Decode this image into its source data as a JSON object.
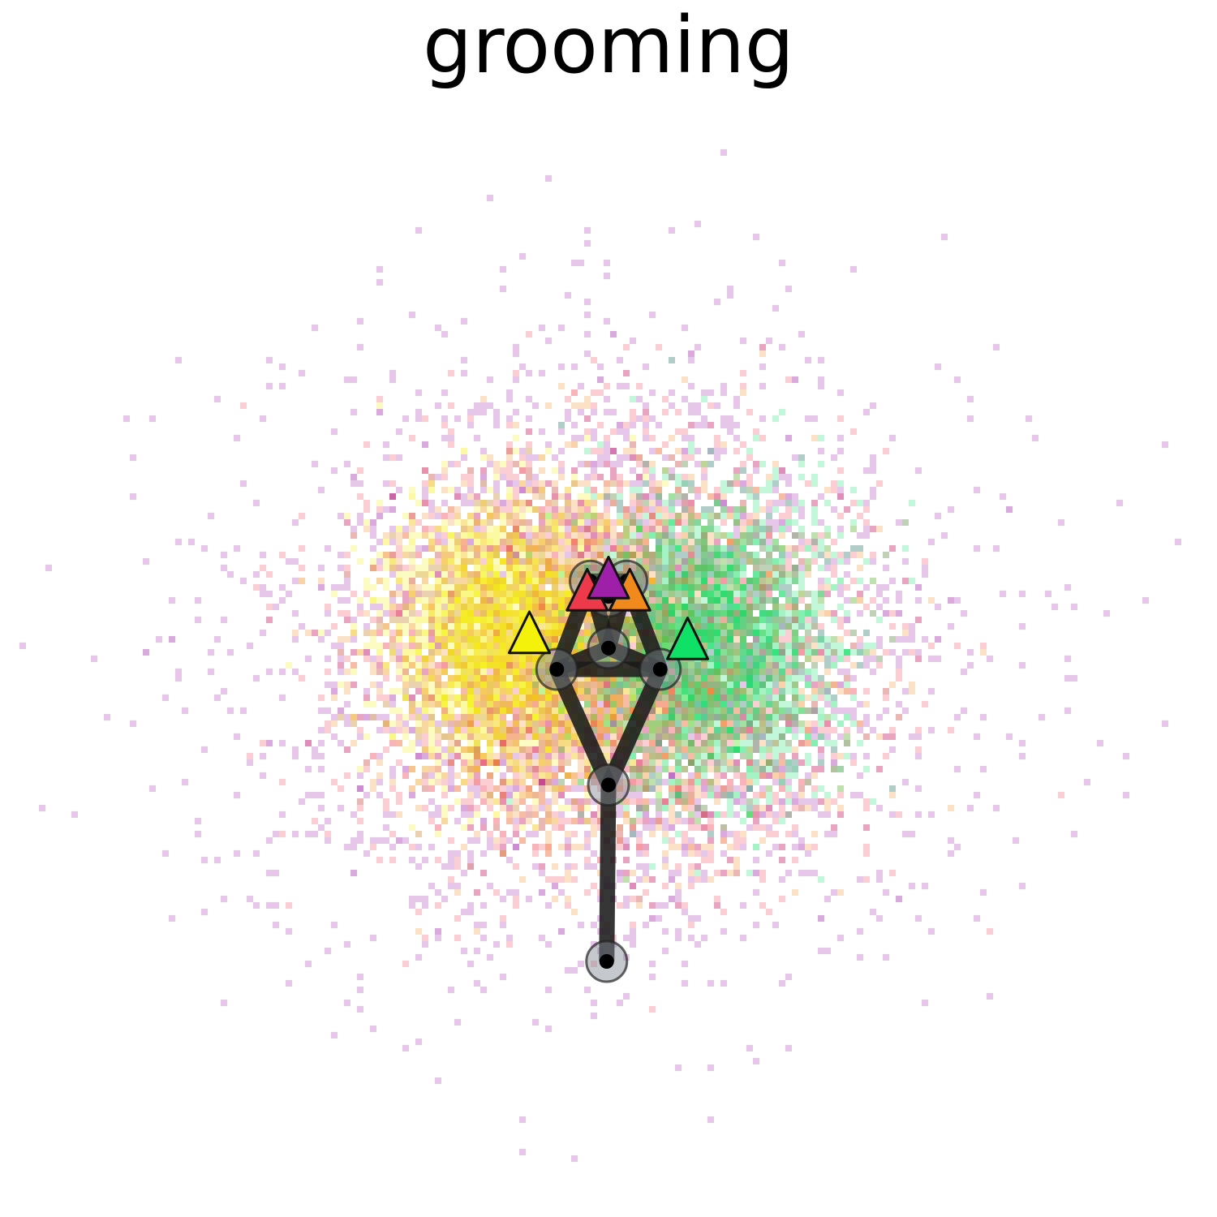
{
  "chart_data": {
    "type": "scatter",
    "title": "grooming",
    "xlabel": "",
    "ylabel": "",
    "axes_visible": false,
    "grid": false,
    "legend": "none",
    "xlim": [
      -1.0,
      1.0
    ],
    "ylim": [
      -1.0,
      1.0
    ],
    "density_clouds": [
      {
        "color": "#9e1fa8",
        "cx": 0.0,
        "cy": -0.08,
        "sx": 0.29,
        "sy": 0.25
      },
      {
        "color": "#ec3a4a",
        "cx": 0.0,
        "cy": -0.08,
        "sx": 0.2,
        "sy": 0.17
      },
      {
        "color": "#f08a1c",
        "cx": 0.0,
        "cy": -0.08,
        "sx": 0.17,
        "sy": 0.14
      },
      {
        "color": "#f4f20a",
        "cx": -0.17,
        "cy": -0.05,
        "sx": 0.1,
        "sy": 0.11
      },
      {
        "color": "#0fe066",
        "cx": 0.17,
        "cy": -0.06,
        "sx": 0.1,
        "sy": 0.12
      }
    ],
    "skeleton": {
      "joints": [
        {
          "name": "head_front_left",
          "x": -0.03,
          "y": 0.045
        },
        {
          "name": "head_front_right",
          "x": 0.03,
          "y": 0.045
        },
        {
          "name": "head_center",
          "x": 0.0,
          "y": 0.02
        },
        {
          "name": "neck",
          "x": 0.0,
          "y": -0.065
        },
        {
          "name": "shoulder_left",
          "x": -0.085,
          "y": -0.1
        },
        {
          "name": "shoulder_right",
          "x": 0.085,
          "y": -0.1
        },
        {
          "name": "hip",
          "x": 0.0,
          "y": -0.29
        },
        {
          "name": "tail",
          "x": -0.003,
          "y": -0.58
        }
      ],
      "bones": [
        [
          "head_front_left",
          "head_front_right"
        ],
        [
          "head_front_left",
          "head_center"
        ],
        [
          "head_front_right",
          "head_center"
        ],
        [
          "head_front_left",
          "neck"
        ],
        [
          "head_front_right",
          "neck"
        ],
        [
          "head_front_left",
          "shoulder_left"
        ],
        [
          "head_front_right",
          "shoulder_right"
        ],
        [
          "shoulder_left",
          "shoulder_right"
        ],
        [
          "shoulder_left",
          "neck"
        ],
        [
          "shoulder_right",
          "neck"
        ],
        [
          "shoulder_left",
          "hip"
        ],
        [
          "shoulder_right",
          "hip"
        ],
        [
          "hip",
          "tail"
        ]
      ]
    },
    "markers": [
      {
        "name": "left-paw",
        "x": -0.13,
        "y": -0.04,
        "color": "#f4f20a"
      },
      {
        "name": "right-paw",
        "x": 0.13,
        "y": -0.05,
        "color": "#0fe066"
      },
      {
        "name": "nose-left",
        "x": -0.035,
        "y": 0.03,
        "color": "#ec3a4a"
      },
      {
        "name": "nose-right",
        "x": 0.035,
        "y": 0.03,
        "color": "#f08a1c"
      },
      {
        "name": "nose-top",
        "x": 0.0,
        "y": 0.05,
        "color": "#9e1fa8"
      }
    ]
  }
}
